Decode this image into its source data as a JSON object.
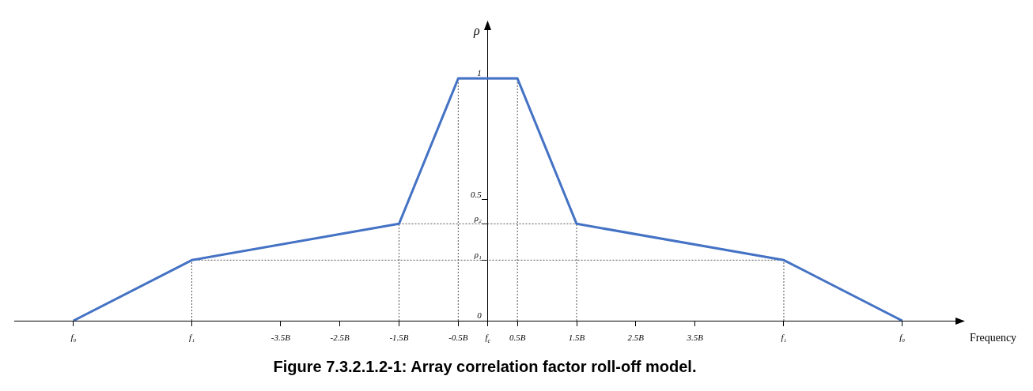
{
  "chart_data": {
    "type": "line",
    "title": "Figure 7.3.2.1.2-1: Array correlation factor roll-off model.",
    "xlabel": "Frequency",
    "ylabel": "ρ",
    "x": [
      -7,
      -5,
      -1.5,
      -0.5,
      0.5,
      1.5,
      5,
      7
    ],
    "series": [
      {
        "color": "#4472c4",
        "values": [
          0,
          0.25,
          0.4,
          1,
          1,
          0.4,
          0.25,
          0
        ]
      }
    ],
    "xlim": [
      -8,
      7.9
    ],
    "ylim": [
      0,
      1.2
    ],
    "xticks": [
      {
        "value": -7,
        "label": "f₀"
      },
      {
        "value": -5,
        "label": "f₁"
      },
      {
        "value": -3.5,
        "label": "-3.5B"
      },
      {
        "value": -2.5,
        "label": "-2.5B"
      },
      {
        "value": -1.5,
        "label": "-1.5B"
      },
      {
        "value": -0.5,
        "label": "-0.5B"
      },
      {
        "value": 0,
        "label": "f$_{c}$"
      },
      {
        "value": 0.5,
        "label": "0.5B"
      },
      {
        "value": 1.5,
        "label": "1.5B"
      },
      {
        "value": 2.5,
        "label": "2.5B"
      },
      {
        "value": 3.5,
        "label": "3.5B"
      },
      {
        "value": 5,
        "label": "f₁"
      },
      {
        "value": 7,
        "label": "f₀"
      }
    ],
    "yticks": [
      0,
      {
        "value": 0.25,
        "label": "ρ₁"
      },
      {
        "value": 0.4,
        "label": "ρ₂"
      },
      0.5,
      1
    ],
    "ref_lines": [
      {
        "axis": "x",
        "value": -5,
        "line_style": "dotted",
        "color": "#555555"
      },
      {
        "axis": "x",
        "value": -1.5,
        "line_style": "dotted",
        "color": "#555555"
      },
      {
        "axis": "x",
        "value": -0.5,
        "line_style": "dotted",
        "color": "#555555"
      },
      {
        "axis": "x",
        "value": 0.5,
        "line_style": "dotted",
        "color": "#555555"
      },
      {
        "axis": "x",
        "value": 1.5,
        "line_style": "dotted",
        "color": "#555555"
      },
      {
        "axis": "x",
        "value": 5,
        "line_style": "dotted",
        "color": "#555555"
      },
      {
        "axis": "y",
        "value": 0.25,
        "line_style": "dotted",
        "color": "#555555"
      },
      {
        "axis": "y",
        "value": 0.4,
        "line_style": "dotted",
        "color": "#555555"
      }
    ],
    "grid": false,
    "legend": false,
    "marker": "none",
    "line_style": "solid"
  }
}
